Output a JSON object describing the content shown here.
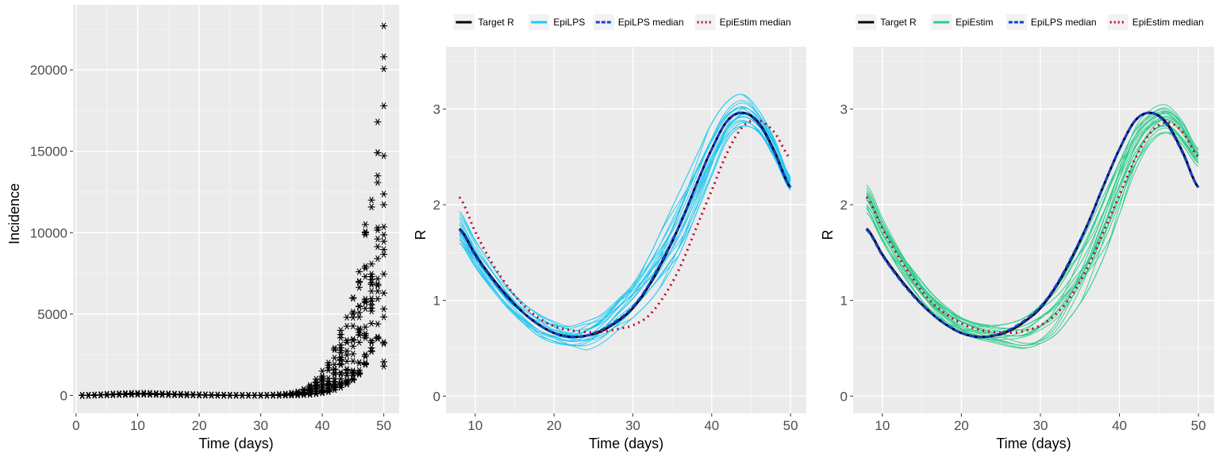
{
  "chart_data": [
    {
      "type": "scatter",
      "xlabel": "Time (days)",
      "ylabel": "Incidence",
      "xlim": [
        -0.5,
        52.5
      ],
      "ylim": [
        -1100,
        24000
      ],
      "xticks": [
        0,
        10,
        20,
        30,
        40,
        50
      ],
      "yticks": [
        0,
        5000,
        10000,
        15000,
        20000
      ],
      "ytick_labels": [
        "0",
        "5000",
        "10000",
        "15000",
        "20000"
      ],
      "marker": "asterisk",
      "marker_color": "#000000",
      "grid": true,
      "series_summary": "20 simulated incidence replicates per day, days 1-50",
      "x": [
        1,
        2,
        3,
        4,
        5,
        6,
        7,
        8,
        9,
        10,
        11,
        12,
        13,
        14,
        15,
        16,
        17,
        18,
        19,
        20,
        21,
        22,
        23,
        24,
        25,
        26,
        27,
        28,
        29,
        30,
        31,
        32,
        33,
        34,
        35,
        36,
        37,
        38,
        39,
        40,
        41,
        42,
        43,
        44,
        45,
        46,
        47,
        48,
        49,
        50
      ],
      "y_min": [
        0,
        5,
        15,
        25,
        35,
        45,
        55,
        60,
        65,
        70,
        70,
        65,
        60,
        55,
        50,
        45,
        40,
        35,
        30,
        25,
        20,
        18,
        15,
        12,
        10,
        8,
        7,
        6,
        5,
        5,
        6,
        8,
        10,
        15,
        20,
        30,
        45,
        70,
        110,
        170,
        230,
        350,
        500,
        700,
        950,
        1300,
        1900,
        2700,
        3500,
        1800
      ],
      "y_max": [
        0,
        10,
        30,
        50,
        70,
        90,
        110,
        120,
        130,
        140,
        140,
        130,
        120,
        110,
        100,
        90,
        80,
        70,
        60,
        50,
        40,
        36,
        30,
        24,
        20,
        16,
        14,
        12,
        10,
        12,
        20,
        35,
        60,
        90,
        140,
        230,
        380,
        620,
        1000,
        1500,
        2000,
        2900,
        4000,
        4800,
        6000,
        7600,
        10500,
        12000,
        16800,
        22700
      ]
    },
    {
      "type": "line",
      "xlabel": "Time (days)",
      "ylabel": "R",
      "xlim": [
        6.3,
        52
      ],
      "ylim": [
        -0.18,
        3.65
      ],
      "xticks": [
        10,
        20,
        30,
        40,
        50
      ],
      "yticks": [
        0,
        1,
        2,
        3
      ],
      "grid": true,
      "legend": {
        "position": "top",
        "entries": [
          {
            "name": "Target R",
            "color": "#000000",
            "style": "solid"
          },
          {
            "name": "EpiLPS",
            "color": "#1ec8f0",
            "style": "solid"
          },
          {
            "name": "EpiLPS median",
            "color": "#1040d0",
            "style": "dashed"
          },
          {
            "name": "EpiEstim median",
            "color": "#c0002a",
            "style": "dotted"
          }
        ]
      },
      "x": [
        8,
        10,
        12,
        14,
        16,
        18,
        20,
        22,
        24,
        26,
        28,
        30,
        32,
        34,
        36,
        38,
        40,
        42,
        44,
        46,
        48,
        50
      ],
      "series": [
        {
          "name": "Target R",
          "values": [
            1.75,
            1.48,
            1.25,
            1.05,
            0.88,
            0.75,
            0.66,
            0.62,
            0.63,
            0.68,
            0.78,
            0.92,
            1.15,
            1.45,
            1.8,
            2.2,
            2.58,
            2.88,
            2.96,
            2.85,
            2.55,
            2.18
          ]
        },
        {
          "name": "EpiLPS",
          "kind": "replicate_band",
          "lower": [
            1.6,
            1.35,
            1.13,
            0.93,
            0.77,
            0.63,
            0.55,
            0.5,
            0.48,
            0.55,
            0.68,
            0.82,
            0.98,
            1.2,
            1.5,
            1.9,
            2.3,
            2.68,
            2.82,
            2.75,
            2.48,
            2.15
          ],
          "upper": [
            1.93,
            1.63,
            1.38,
            1.15,
            0.98,
            0.86,
            0.78,
            0.73,
            0.78,
            0.85,
            1.0,
            1.17,
            1.45,
            1.8,
            2.15,
            2.5,
            2.85,
            3.08,
            3.15,
            2.98,
            2.68,
            2.3
          ]
        },
        {
          "name": "EpiLPS median",
          "values": [
            1.74,
            1.47,
            1.24,
            1.04,
            0.88,
            0.75,
            0.66,
            0.62,
            0.63,
            0.69,
            0.79,
            0.93,
            1.16,
            1.46,
            1.8,
            2.2,
            2.58,
            2.88,
            2.96,
            2.84,
            2.54,
            2.18
          ]
        },
        {
          "name": "EpiEstim median",
          "values": [
            2.08,
            1.72,
            1.41,
            1.16,
            0.96,
            0.82,
            0.73,
            0.69,
            0.67,
            0.67,
            0.7,
            0.74,
            0.84,
            1.05,
            1.35,
            1.75,
            2.15,
            2.55,
            2.82,
            2.88,
            2.75,
            2.48
          ]
        }
      ]
    },
    {
      "type": "line",
      "xlabel": "Time (days)",
      "ylabel": "R",
      "xlim": [
        6.3,
        52
      ],
      "ylim": [
        -0.18,
        3.65
      ],
      "xticks": [
        10,
        20,
        30,
        40,
        50
      ],
      "yticks": [
        0,
        1,
        2,
        3
      ],
      "grid": true,
      "legend": {
        "position": "top",
        "entries": [
          {
            "name": "Target R",
            "color": "#000000",
            "style": "solid"
          },
          {
            "name": "EpiEstim",
            "color": "#2ecc8c",
            "style": "solid"
          },
          {
            "name": "EpiLPS median",
            "color": "#1040d0",
            "style": "dashed"
          },
          {
            "name": "EpiEstim median",
            "color": "#c0002a",
            "style": "dotted"
          }
        ]
      },
      "x": [
        8,
        10,
        12,
        14,
        16,
        18,
        20,
        22,
        24,
        26,
        28,
        30,
        32,
        34,
        36,
        38,
        40,
        42,
        44,
        46,
        48,
        50
      ],
      "series": [
        {
          "name": "Target R",
          "values": [
            1.75,
            1.48,
            1.25,
            1.05,
            0.88,
            0.75,
            0.66,
            0.62,
            0.63,
            0.68,
            0.78,
            0.92,
            1.15,
            1.45,
            1.8,
            2.2,
            2.58,
            2.88,
            2.96,
            2.85,
            2.55,
            2.18
          ]
        },
        {
          "name": "EpiEstim",
          "kind": "replicate_band",
          "lower": [
            1.92,
            1.62,
            1.34,
            1.1,
            0.9,
            0.76,
            0.66,
            0.6,
            0.56,
            0.52,
            0.5,
            0.55,
            0.65,
            0.85,
            1.1,
            1.45,
            1.9,
            2.35,
            2.65,
            2.75,
            2.62,
            2.4
          ],
          "upper": [
            2.25,
            1.88,
            1.58,
            1.32,
            1.1,
            0.94,
            0.82,
            0.76,
            0.74,
            0.76,
            0.82,
            0.95,
            1.15,
            1.45,
            1.8,
            2.2,
            2.6,
            2.9,
            3.02,
            3.05,
            2.88,
            2.58
          ]
        },
        {
          "name": "EpiLPS median",
          "values": [
            1.74,
            1.47,
            1.24,
            1.04,
            0.88,
            0.75,
            0.66,
            0.62,
            0.63,
            0.69,
            0.79,
            0.93,
            1.16,
            1.46,
            1.8,
            2.2,
            2.58,
            2.88,
            2.96,
            2.84,
            2.54,
            2.18
          ]
        },
        {
          "name": "EpiEstim median",
          "values": [
            2.08,
            1.75,
            1.46,
            1.21,
            1.0,
            0.86,
            0.76,
            0.7,
            0.67,
            0.66,
            0.68,
            0.74,
            0.86,
            1.06,
            1.35,
            1.72,
            2.1,
            2.48,
            2.76,
            2.86,
            2.76,
            2.5
          ]
        }
      ]
    }
  ]
}
